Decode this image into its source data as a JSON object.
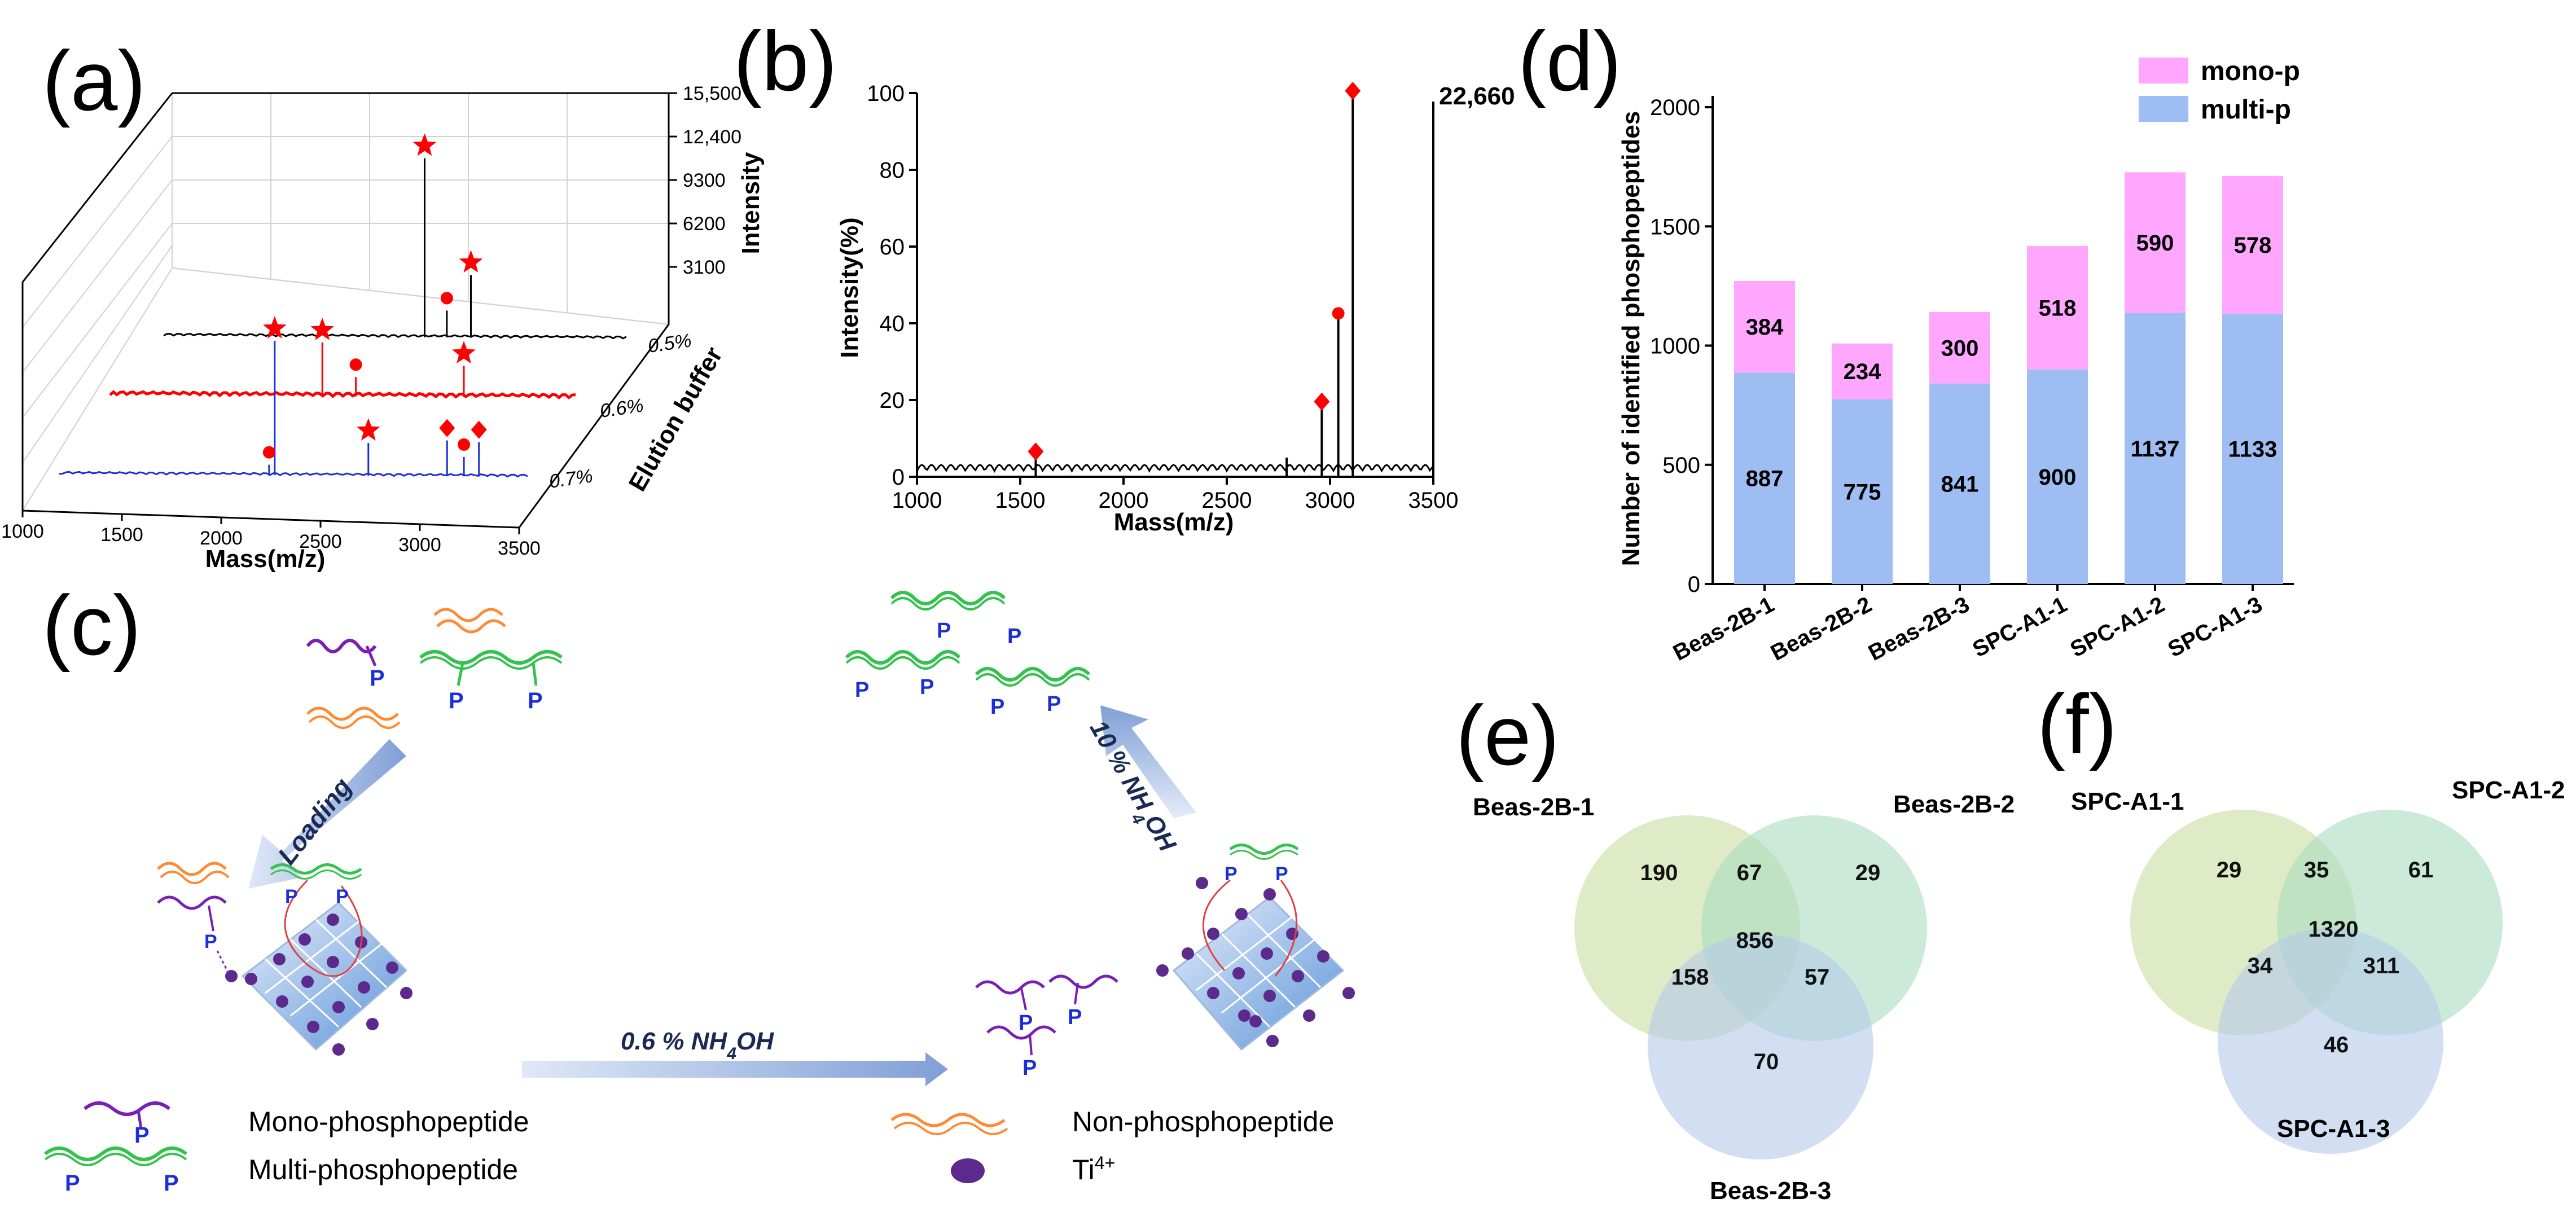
{
  "panels": {
    "a": "(a)",
    "b": "(b)",
    "c": "(c)",
    "d": "(d)",
    "e": "(e)",
    "f": "(f)"
  },
  "colors": {
    "mono": "#ffa6ff",
    "multi": "#9ebdf2",
    "red": "#ff0000",
    "blue": "#1c2fd6",
    "venn1": "#c9dca0",
    "venn2": "#a8dcbf",
    "venn3": "#b4c9ea",
    "purple": "#7a1fb6",
    "green": "#33c24d",
    "orange": "#ff8a33"
  },
  "chart_data": [
    {
      "id": "a",
      "type": "line",
      "title": "",
      "xlabel": "Mass(m/z)",
      "ylabel": "Intensity",
      "zlabel": "Elution buffer",
      "xlim": [
        1000,
        3500
      ],
      "xticks": [
        "1000",
        "1500",
        "2000",
        "2500",
        "3000",
        "3500"
      ],
      "zticks": [
        "15,500",
        "12,400",
        "9300",
        "6200",
        "3100"
      ],
      "series": [
        {
          "name": "0.5%",
          "color": "#000000",
          "peaks": [
            {
              "mass": 2410,
              "intensity": 12000,
              "marker": "star"
            },
            {
              "mass": 2660,
              "intensity": 4200,
              "marker": "star"
            },
            {
              "mass": 2530,
              "intensity": 1800,
              "marker": "dot"
            }
          ]
        },
        {
          "name": "0.6%",
          "color": "#ff0000",
          "peaks": [
            {
              "mass": 2140,
              "intensity": 3600,
              "marker": "star"
            },
            {
              "mass": 2900,
              "intensity": 2100,
              "marker": "star"
            },
            {
              "mass": 2320,
              "intensity": 1300,
              "marker": "dot"
            }
          ]
        },
        {
          "name": "0.7%",
          "color": "#1c2fd6",
          "peaks": [
            {
              "mass": 2150,
              "intensity": 9000,
              "marker": "star"
            },
            {
              "mass": 2650,
              "intensity": 2200,
              "marker": "star"
            },
            {
              "mass": 3070,
              "intensity": 2400,
              "marker": "diamond"
            },
            {
              "mass": 3240,
              "intensity": 2300,
              "marker": "diamond"
            },
            {
              "mass": 2120,
              "intensity": 700,
              "marker": "dot"
            },
            {
              "mass": 3160,
              "intensity": 1300,
              "marker": "dot"
            }
          ]
        }
      ]
    },
    {
      "id": "b",
      "type": "line",
      "title": "",
      "xlabel": "Mass(m/z)",
      "ylabel": "Intensity(%)",
      "xlim": [
        1000,
        3500
      ],
      "ylim": [
        0,
        100
      ],
      "xticks": [
        "1000",
        "1500",
        "2000",
        "2500",
        "3000",
        "3500"
      ],
      "yticks": [
        "0",
        "20",
        "40",
        "60",
        "80",
        "100"
      ],
      "max_label": "22,660",
      "peaks": [
        {
          "mass": 1575,
          "intensity": 6,
          "marker": "diamond"
        },
        {
          "mass": 2790,
          "intensity": 5,
          "marker": ""
        },
        {
          "mass": 2960,
          "intensity": 19,
          "marker": "diamond"
        },
        {
          "mass": 3040,
          "intensity": 42,
          "marker": "dot"
        },
        {
          "mass": 3110,
          "intensity": 100,
          "marker": "diamond"
        }
      ]
    },
    {
      "id": "d",
      "type": "bar",
      "stacked": true,
      "title": "",
      "xlabel": "",
      "ylabel": "Number of identified phosphopeptides",
      "ylim": [
        0,
        2000
      ],
      "yticks": [
        "0",
        "500",
        "1000",
        "1500",
        "2000"
      ],
      "categories": [
        "Beas-2B-1",
        "Beas-2B-2",
        "Beas-2B-3",
        "SPC-A1-1",
        "SPC-A1-2",
        "SPC-A1-3"
      ],
      "series": [
        {
          "name": "multi-p",
          "values": [
            887,
            775,
            841,
            900,
            1137,
            1133
          ]
        },
        {
          "name": "mono-p",
          "values": [
            384,
            234,
            300,
            518,
            590,
            578
          ]
        }
      ],
      "legend": [
        "mono-p",
        "multi-p"
      ],
      "legend_position": "top-right"
    },
    {
      "id": "e",
      "type": "venn",
      "sets": [
        "Beas-2B-1",
        "Beas-2B-2",
        "Beas-2B-3"
      ],
      "regions": {
        "only1": 190,
        "only2": 29,
        "only3": 70,
        "r12": 67,
        "r13": 158,
        "r23": 57,
        "r123": 856
      }
    },
    {
      "id": "f",
      "type": "venn",
      "sets": [
        "SPC-A1-1",
        "SPC-A1-2",
        "SPC-A1-3"
      ],
      "regions": {
        "only1": 29,
        "only2": 61,
        "only3": 46,
        "r12": 35,
        "r13": 34,
        "r23": 311,
        "r123": 1320
      }
    }
  ],
  "schematic": {
    "loading": "Loading",
    "nh4oh_06": "0.6 % NH",
    "nh4oh_10": "10 % NH",
    "nh4_sub": "4",
    "oh": "OH",
    "p": "P",
    "legend": {
      "mono": "Mono-phosphopeptide",
      "multi": "Multi-phosphopeptide",
      "non": "Non-phosphopeptide",
      "ti": "Ti",
      "ti_sup": "4+"
    }
  }
}
